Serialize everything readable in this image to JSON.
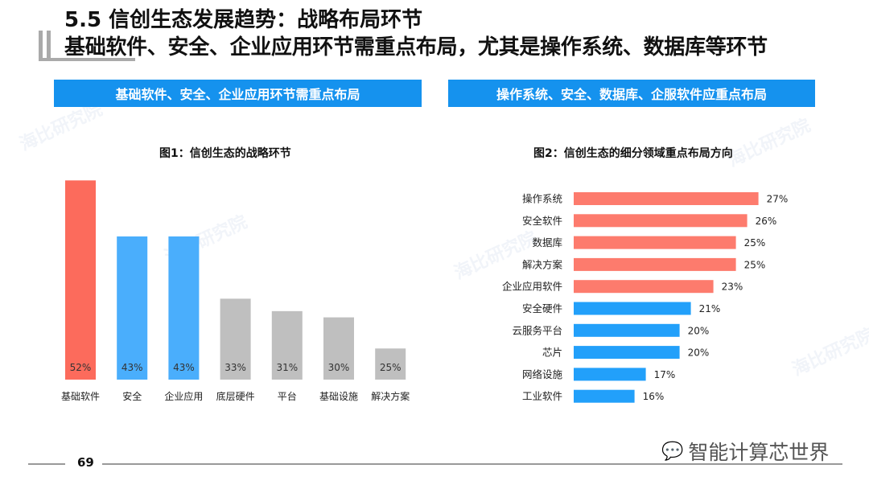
{
  "header": {
    "title": "5.5 信创生态发展趋势：战略布局环节",
    "subtitle": "基础软件、安全、企业应用环节需重点布局，尤其是操作系统、数据库等环节"
  },
  "banners": {
    "left": "基础软件、安全、企业应用环节需重点布局",
    "right": "操作系统、安全、数据库、企服软件应重点布局"
  },
  "colors": {
    "red": "#fc6b5c",
    "blue": "#4aaefc",
    "gray": "#bfbfbf",
    "salmon": "#fd7b6d",
    "blue2": "#22a0fa",
    "banner": "#1592ee"
  },
  "chart_data": [
    {
      "type": "bar",
      "title": "图1：信创生态的战略环节",
      "categories": [
        "基础软件",
        "安全",
        "企业应用",
        "底层硬件",
        "平台",
        "基础设施",
        "解决方案"
      ],
      "values": [
        52,
        43,
        43,
        33,
        31,
        30,
        25
      ],
      "labels": [
        "52%",
        "43%",
        "43%",
        "33%",
        "31%",
        "30%",
        "25%"
      ],
      "colors": [
        "red",
        "blue",
        "blue",
        "gray",
        "gray",
        "gray",
        "gray"
      ],
      "unit": "%",
      "ylim": [
        20,
        54
      ],
      "grid": false
    },
    {
      "type": "bar",
      "orientation": "horizontal",
      "title": "图2：信创生态的细分领域重点布局方向",
      "categories": [
        "操作系统",
        "安全软件",
        "数据库",
        "解决方案",
        "企业应用软件",
        "安全硬件",
        "云服务平台",
        "芯片",
        "网络设施",
        "工业软件"
      ],
      "values": [
        27,
        26,
        25,
        25,
        23,
        21,
        20,
        20,
        17,
        16
      ],
      "labels": [
        "27%",
        "26%",
        "25%",
        "25%",
        "23%",
        "21%",
        "20%",
        "20%",
        "17%",
        "16%"
      ],
      "colors": [
        "salmon",
        "salmon",
        "salmon",
        "salmon",
        "salmon",
        "blue2",
        "blue2",
        "blue2",
        "blue2",
        "blue2"
      ],
      "unit": "%",
      "xlim": [
        10.6,
        28
      ],
      "grid": false
    }
  ],
  "footer": {
    "page_number": "69",
    "brand": "智能计算芯世界",
    "watermark": "海比研究院"
  }
}
